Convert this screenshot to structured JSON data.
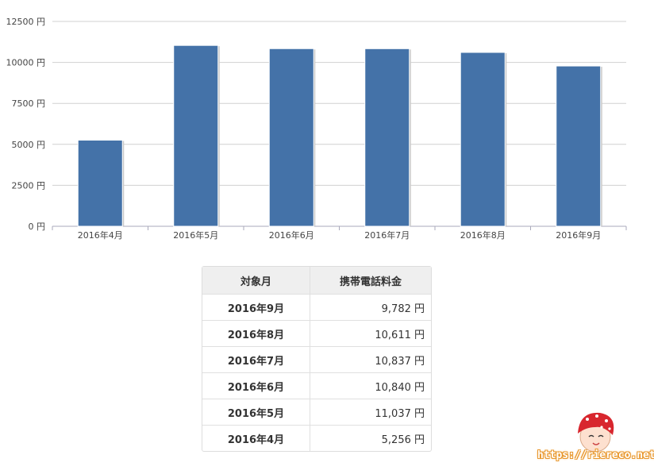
{
  "chart_data": {
    "type": "bar",
    "categories": [
      "2016年4月",
      "2016年5月",
      "2016年6月",
      "2016年7月",
      "2016年8月",
      "2016年9月"
    ],
    "values": [
      5256,
      11037,
      10840,
      10837,
      10611,
      9782
    ],
    "yticks": [
      "0 円",
      "2500 円",
      "5000 円",
      "7500 円",
      "10000 円",
      "12500 円"
    ],
    "ylim": [
      0,
      12500
    ],
    "grid": true,
    "bar_color": "#4472a8"
  },
  "table": {
    "headers": [
      "対象月",
      "携帯電話料金"
    ],
    "rows": [
      {
        "month": "2016年9月",
        "amount": "9,782 円"
      },
      {
        "month": "2016年8月",
        "amount": "10,611 円"
      },
      {
        "month": "2016年7月",
        "amount": "10,837 円"
      },
      {
        "month": "2016年6月",
        "amount": "10,840 円"
      },
      {
        "month": "2016年5月",
        "amount": "11,037 円"
      },
      {
        "month": "2016年4月",
        "amount": "5,256 円"
      }
    ]
  },
  "watermark": {
    "text": "https://riereco.net/"
  }
}
